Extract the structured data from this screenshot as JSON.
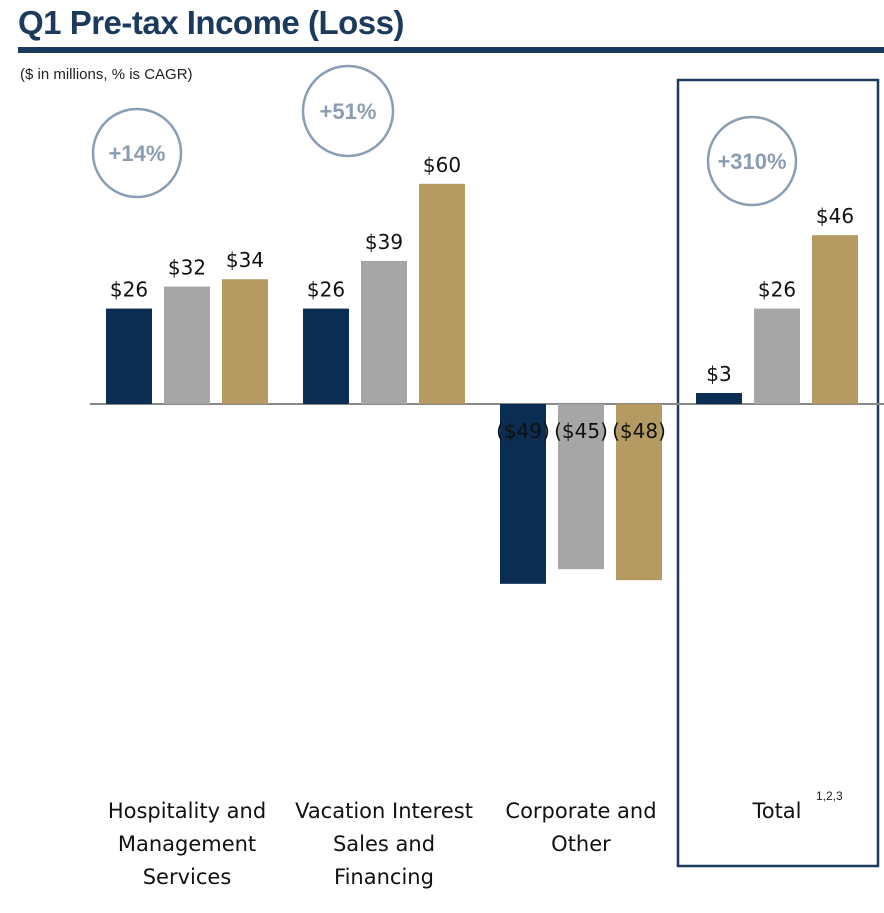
{
  "title": "Q1 Pre-tax Income (Loss)",
  "subtitle": "($ in millions, % is CAGR)",
  "colors": {
    "title": "#1b3a5e",
    "series": [
      "#0b2d52",
      "#a6a6a6",
      "#b59b62"
    ],
    "cagr_circle": "#8a9db4",
    "axis": "#888888",
    "highlight_box": "#1b3a5e"
  },
  "chart_data": {
    "type": "bar",
    "categories": [
      [
        "Hospitality and",
        "Management",
        "Services"
      ],
      [
        "Vacation Interest",
        "Sales and",
        "Financing"
      ],
      [
        "Corporate and",
        "Other"
      ],
      [
        "Total"
      ]
    ],
    "series": [
      {
        "values": [
          26,
          26,
          -49,
          3
        ]
      },
      {
        "values": [
          32,
          39,
          -45,
          26
        ]
      },
      {
        "values": [
          34,
          60,
          -48,
          46
        ]
      }
    ],
    "value_labels": [
      [
        "$26",
        "$32",
        "$34"
      ],
      [
        "$26",
        "$39",
        "$60"
      ],
      [
        "($49)",
        "($45)",
        "($48)"
      ],
      [
        "$3",
        "$26",
        "$46"
      ]
    ],
    "cagr_labels": [
      "+14%",
      "+51%",
      "",
      "+310%"
    ],
    "footnote": "1,2,3",
    "highlighted_category": "Total",
    "ylim": [
      -49,
      60
    ]
  }
}
